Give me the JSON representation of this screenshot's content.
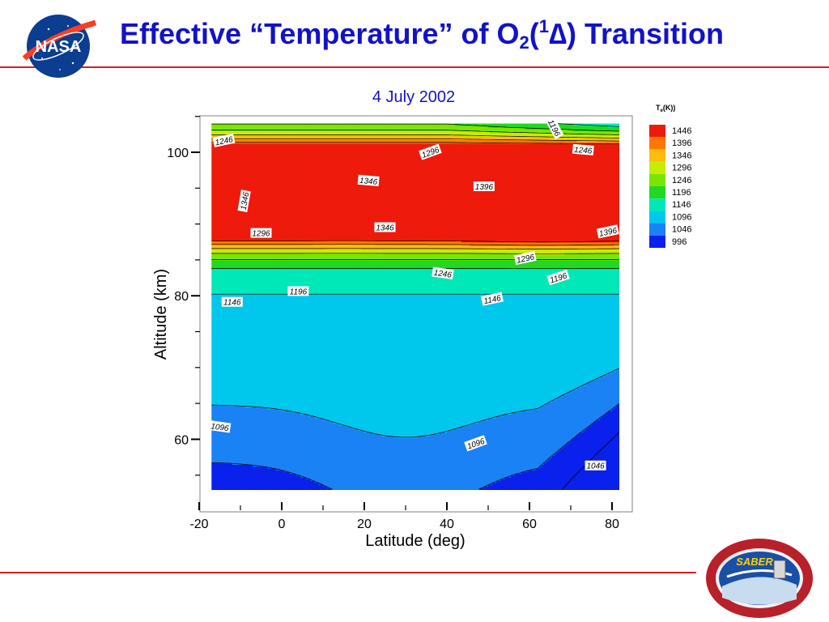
{
  "slide": {
    "title_main": "Effective “Temperature” of O",
    "title_sub": "2",
    "title_open": "(",
    "title_sup": "1",
    "title_delta": "∆",
    "title_tail": ") Transition",
    "accent_color": "#1212c8",
    "rule_color": "#d62020"
  },
  "logos": {
    "nasa_text": "NASA",
    "saber_text": "SABER"
  },
  "chart_data": {
    "type": "heatmap",
    "subtitle": "4 July 2002",
    "xlabel": "Latitude (deg)",
    "ylabel": "Altitude (km)",
    "xlim": [
      -20,
      82
    ],
    "ylim": [
      50,
      105
    ],
    "xticks": [
      -20,
      0,
      20,
      40,
      60,
      80
    ],
    "yticks": [
      60,
      80,
      100
    ],
    "data_x_range": [
      -17,
      82
    ],
    "data_y_range": [
      53,
      104
    ],
    "legend_title": "T",
    "legend_title_sub": "e",
    "legend_title_tail": "(K))",
    "legend_placement": "right",
    "levels": [
      {
        "value": 1446,
        "color": "#ee1a0c"
      },
      {
        "value": 1396,
        "color": "#ff7700"
      },
      {
        "value": 1346,
        "color": "#ffbc10"
      },
      {
        "value": 1296,
        "color": "#c6ee00"
      },
      {
        "value": 1246,
        "color": "#7ae600"
      },
      {
        "value": 1196,
        "color": "#22d822"
      },
      {
        "value": 1146,
        "color": "#00e8b8"
      },
      {
        "value": 1096,
        "color": "#00c8ec"
      },
      {
        "value": 1046,
        "color": "#1a82f4"
      },
      {
        "value": 996,
        "color": "#0a20ec"
      }
    ],
    "contour_labels": [
      {
        "text": "1246",
        "x": -14,
        "y": 101.6,
        "angle": -12
      },
      {
        "text": "1196",
        "x": 66,
        "y": 103.4,
        "angle": 62
      },
      {
        "text": "1296",
        "x": 36,
        "y": 100.0,
        "angle": -20
      },
      {
        "text": "1246",
        "x": 73,
        "y": 100.3,
        "angle": 5
      },
      {
        "text": "1346",
        "x": 21,
        "y": 96.0,
        "angle": 5
      },
      {
        "text": "1396",
        "x": 49,
        "y": 95.2,
        "angle": 0
      },
      {
        "text": "1346",
        "x": -9,
        "y": 93.2,
        "angle": -80
      },
      {
        "text": "1346",
        "x": 25,
        "y": 89.5,
        "angle": 0
      },
      {
        "text": "1296",
        "x": -5,
        "y": 88.7,
        "angle": 0
      },
      {
        "text": "1396",
        "x": 79,
        "y": 88.9,
        "angle": -12
      },
      {
        "text": "1296",
        "x": 59,
        "y": 85.2,
        "angle": -12
      },
      {
        "text": "1246",
        "x": 39,
        "y": 83.1,
        "angle": 8
      },
      {
        "text": "1196",
        "x": 67,
        "y": 82.5,
        "angle": -18
      },
      {
        "text": "1196",
        "x": 4,
        "y": 80.6,
        "angle": 0
      },
      {
        "text": "1146",
        "x": -12,
        "y": 79.1,
        "angle": 0
      },
      {
        "text": "1146",
        "x": 51,
        "y": 79.5,
        "angle": -12
      },
      {
        "text": "1096",
        "x": -15,
        "y": 61.7,
        "angle": 8
      },
      {
        "text": "1096",
        "x": 47,
        "y": 59.4,
        "angle": -20
      },
      {
        "text": "1046",
        "x": 76,
        "y": 56.3,
        "angle": 0
      }
    ]
  }
}
